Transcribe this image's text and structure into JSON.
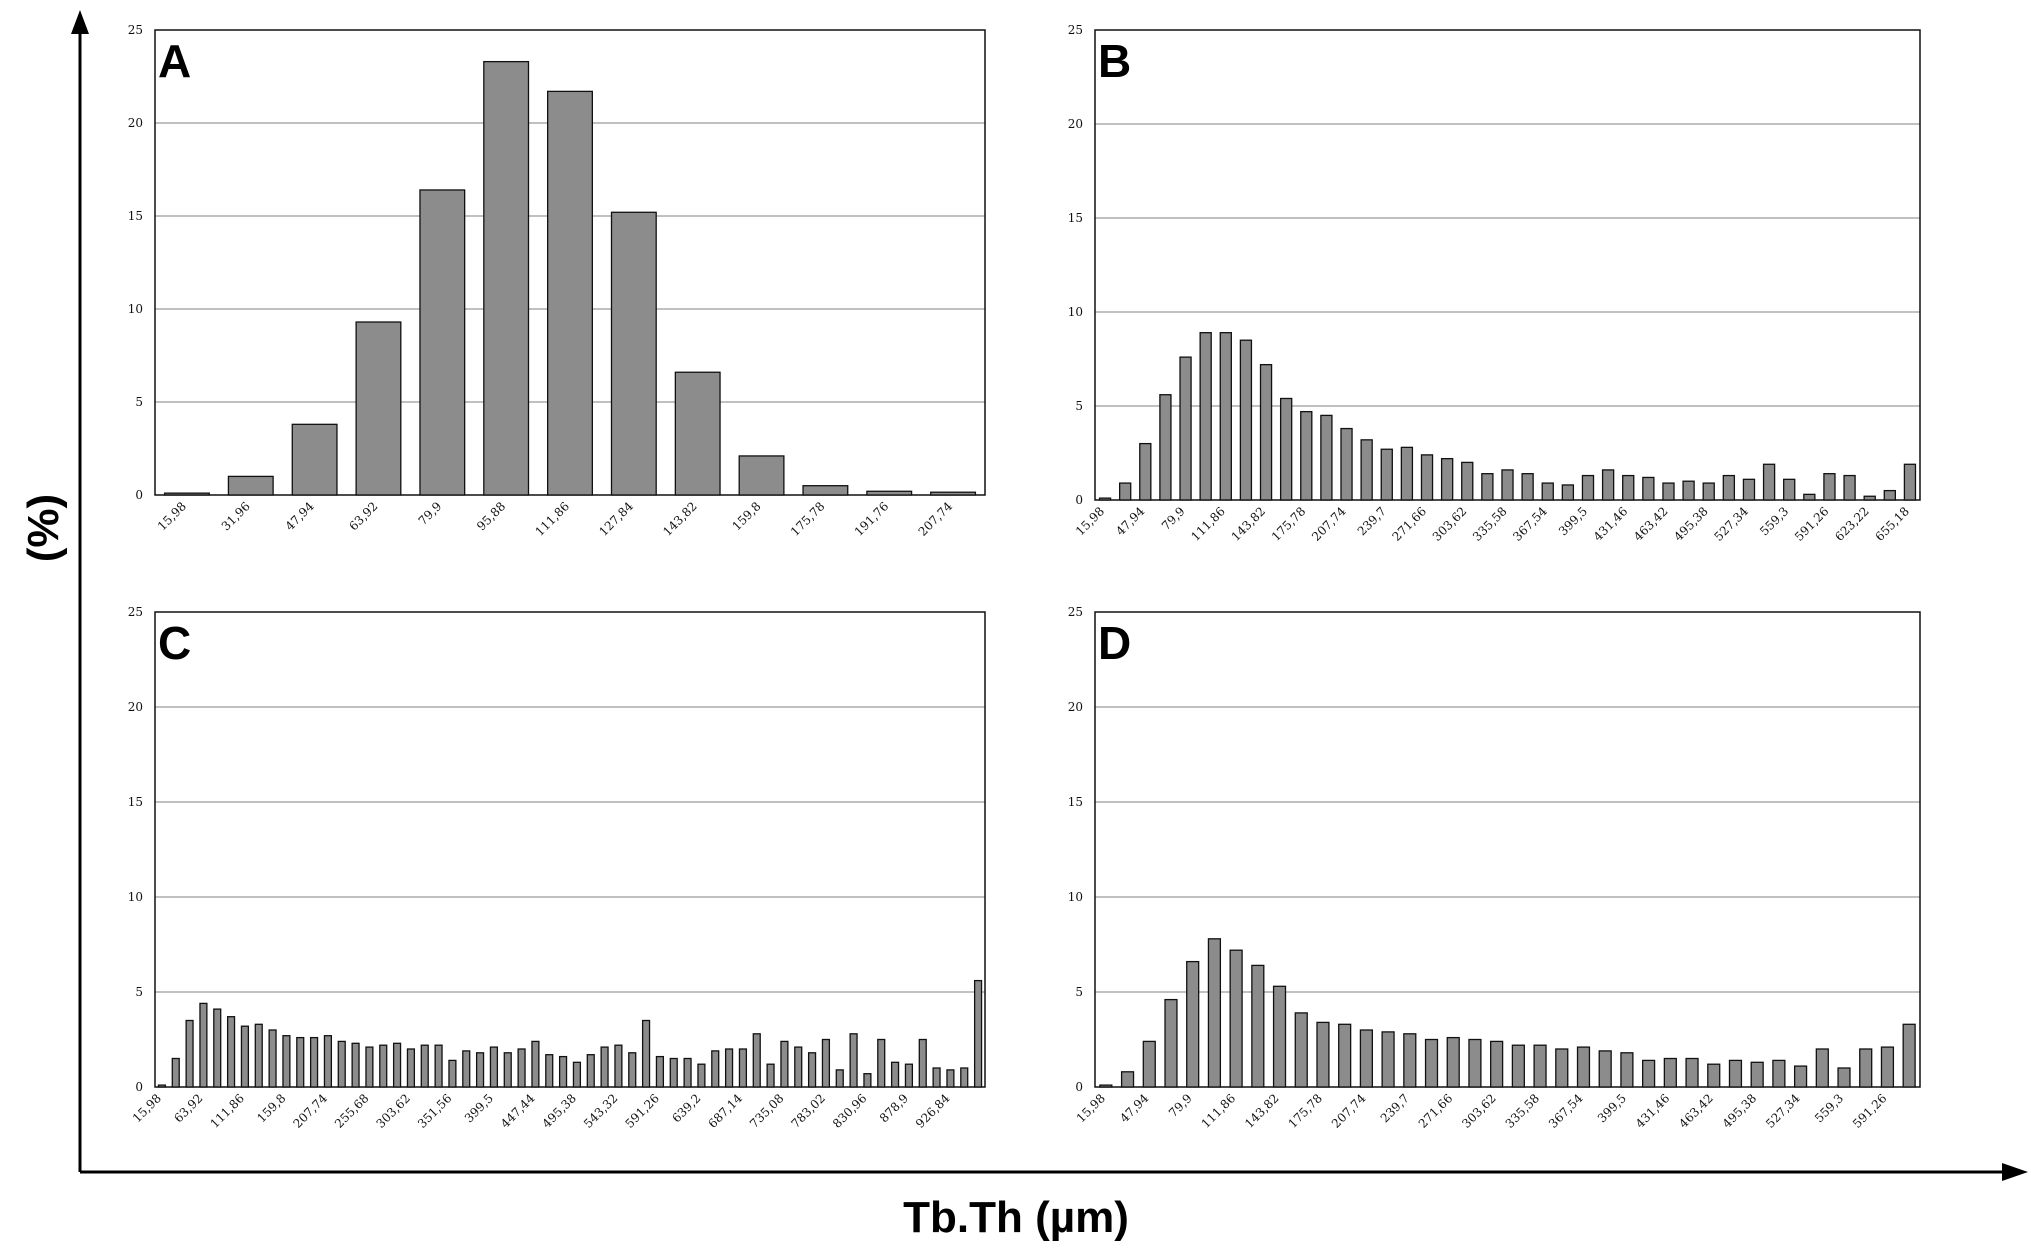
{
  "figure": {
    "xlabel": "Tb.Th (µm)",
    "ylabel": "(%)"
  },
  "chart_data": [
    {
      "type": "bar",
      "panel": "A",
      "ylim": [
        0,
        25
      ],
      "yticks": [
        0,
        5,
        10,
        15,
        20,
        25
      ],
      "grid": true,
      "categories": [
        "15,98",
        "31,96",
        "47,94",
        "63,92",
        "79,9",
        "95,88",
        "111,86",
        "127,84",
        "143,82",
        "159,8",
        "175,78",
        "191,76",
        "207,74"
      ],
      "tick_labels": [
        "15,98",
        "31,96",
        "47,94",
        "63,92",
        "79,9",
        "95,88",
        "111,86",
        "127,84",
        "143,82",
        "159,8",
        "175,78",
        "191,76",
        "207,74"
      ],
      "values": [
        0.1,
        1.0,
        3.8,
        9.3,
        16.4,
        23.3,
        21.7,
        15.2,
        6.6,
        2.1,
        0.5,
        0.2,
        0.15
      ]
    },
    {
      "type": "bar",
      "panel": "B",
      "ylim": [
        0,
        25
      ],
      "yticks": [
        0,
        5,
        10,
        15,
        20,
        25
      ],
      "grid": true,
      "tick_labels": [
        "15,98",
        "47,94",
        "79,9",
        "111,86",
        "143,82",
        "175,78",
        "207,74",
        "239,7",
        "271,66",
        "303,62",
        "335,58",
        "367,54",
        "399,5",
        "431,46",
        "463,42",
        "495,38",
        "527,34",
        "559,3",
        "591,26",
        "623,22",
        "655,18"
      ],
      "values": [
        0.1,
        0.9,
        3.0,
        5.6,
        7.6,
        8.9,
        8.9,
        8.5,
        7.2,
        5.4,
        4.7,
        4.5,
        3.8,
        3.2,
        2.7,
        2.8,
        2.4,
        2.2,
        2.0,
        1.4,
        1.6,
        1.4,
        0.9,
        0.8,
        1.3,
        1.6,
        1.3,
        1.2,
        0.9,
        1.0,
        0.9,
        1.3,
        1.1,
        1.9,
        1.1,
        0.3,
        1.4,
        1.3,
        0.2,
        0.5,
        1.9
      ]
    },
    {
      "type": "bar",
      "panel": "C",
      "ylim": [
        0,
        25
      ],
      "yticks": [
        0,
        5,
        10,
        15,
        20,
        25
      ],
      "grid": true,
      "tick_labels": [
        "15,98",
        "63,92",
        "111,86",
        "159,8",
        "207,74",
        "255,68",
        "303,62",
        "351,56",
        "399,5",
        "447,44",
        "495,38",
        "543,32",
        "591,26",
        "639,2",
        "687,14",
        "735,08",
        "783,02",
        "830,96",
        "878,9",
        "926,84"
      ],
      "values": [
        0.1,
        1.5,
        3.5,
        4.4,
        4.1,
        3.7,
        3.2,
        3.3,
        3.0,
        2.7,
        2.6,
        2.6,
        2.7,
        2.4,
        2.3,
        2.1,
        2.2,
        2.3,
        2.0,
        2.2,
        2.2,
        1.4,
        1.9,
        1.8,
        2.1,
        1.8,
        2.0,
        2.4,
        1.7,
        1.6,
        1.3,
        1.7,
        2.1,
        2.2,
        1.8,
        3.5,
        1.6,
        1.5,
        1.5,
        1.2,
        1.9,
        2.0,
        2.0,
        2.8,
        1.2,
        2.4,
        2.1,
        1.8,
        2.5,
        0.9,
        2.8,
        0.7,
        2.5,
        1.3,
        1.2,
        2.5,
        1.0,
        0.9,
        1.0,
        5.6
      ]
    },
    {
      "type": "bar",
      "panel": "D",
      "ylim": [
        0,
        25
      ],
      "yticks": [
        0,
        5,
        10,
        15,
        20,
        25
      ],
      "grid": true,
      "tick_labels": [
        "15,98",
        "47,94",
        "79,9",
        "111,86",
        "143,82",
        "175,78",
        "207,74",
        "239,7",
        "271,66",
        "303,62",
        "335,58",
        "367,54",
        "399,5",
        "431,46",
        "463,42",
        "495,38",
        "527,34",
        "559,3",
        "591,26"
      ],
      "values": [
        0.1,
        0.8,
        2.4,
        4.6,
        6.6,
        7.8,
        7.2,
        6.4,
        5.3,
        3.9,
        3.4,
        3.3,
        3.0,
        2.9,
        2.8,
        2.5,
        2.6,
        2.5,
        2.4,
        2.2,
        2.2,
        2.0,
        2.1,
        1.9,
        1.8,
        1.4,
        1.5,
        1.5,
        1.2,
        1.4,
        1.3,
        1.4,
        1.1,
        2.0,
        1.0,
        2.0,
        2.1,
        3.3
      ]
    }
  ]
}
